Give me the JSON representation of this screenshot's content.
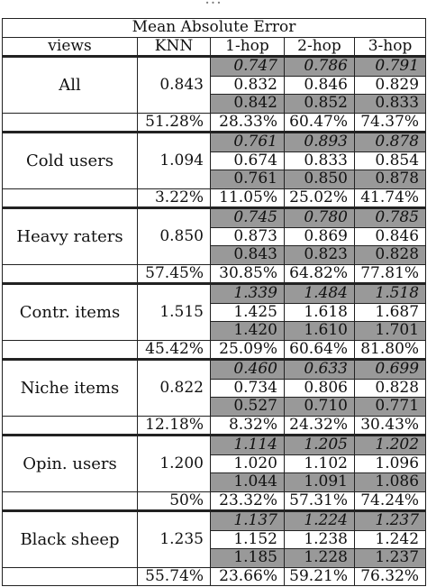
{
  "cutoff_caption": "...",
  "title": "Mean Absolute Error",
  "columns": [
    "views",
    "KNN",
    "1-hop",
    "2-hop",
    "3-hop"
  ],
  "groups": [
    {
      "label": "All",
      "knn": "0.843",
      "pct": "51.28%",
      "rows": [
        [
          "0.747",
          "0.786",
          "0.791"
        ],
        [
          "0.832",
          "0.846",
          "0.829"
        ],
        [
          "0.842",
          "0.852",
          "0.833"
        ],
        [
          "28.33%",
          "60.47%",
          "74.37%"
        ]
      ]
    },
    {
      "label": "Cold users",
      "knn": "1.094",
      "pct": "3.22%",
      "rows": [
        [
          "0.761",
          "0.893",
          "0.878"
        ],
        [
          "0.674",
          "0.833",
          "0.854"
        ],
        [
          "0.761",
          "0.850",
          "0.878"
        ],
        [
          "11.05%",
          "25.02%",
          "41.74%"
        ]
      ]
    },
    {
      "label": "Heavy raters",
      "knn": "0.850",
      "pct": "57.45%",
      "rows": [
        [
          "0.745",
          "0.780",
          "0.785"
        ],
        [
          "0.873",
          "0.869",
          "0.846"
        ],
        [
          "0.843",
          "0.823",
          "0.828"
        ],
        [
          "30.85%",
          "64.82%",
          "77.81%"
        ]
      ]
    },
    {
      "label": "Contr. items",
      "knn": "1.515",
      "pct": "45.42%",
      "rows": [
        [
          "1.339",
          "1.484",
          "1.518"
        ],
        [
          "1.425",
          "1.618",
          "1.687"
        ],
        [
          "1.420",
          "1.610",
          "1.701"
        ],
        [
          "25.09%",
          "60.64%",
          "81.80%"
        ]
      ]
    },
    {
      "label": "Niche items",
      "knn": "0.822",
      "pct": "12.18%",
      "rows": [
        [
          "0.460",
          "0.633",
          "0.699"
        ],
        [
          "0.734",
          "0.806",
          "0.828"
        ],
        [
          "0.527",
          "0.710",
          "0.771"
        ],
        [
          "8.32%",
          "24.32%",
          "30.43%"
        ]
      ]
    },
    {
      "label": "Opin. users",
      "knn": "1.200",
      "pct": "50%",
      "rows": [
        [
          "1.114",
          "1.205",
          "1.202"
        ],
        [
          "1.020",
          "1.102",
          "1.096"
        ],
        [
          "1.044",
          "1.091",
          "1.086"
        ],
        [
          "23.32%",
          "57.31%",
          "74.24%"
        ]
      ]
    },
    {
      "label": "Black sheep",
      "knn": "1.235",
      "pct": "55.74%",
      "rows": [
        [
          "1.137",
          "1.224",
          "1.237"
        ],
        [
          "1.152",
          "1.238",
          "1.242"
        ],
        [
          "1.185",
          "1.228",
          "1.237"
        ],
        [
          "23.66%",
          "59.21%",
          "76.32%"
        ]
      ]
    }
  ]
}
